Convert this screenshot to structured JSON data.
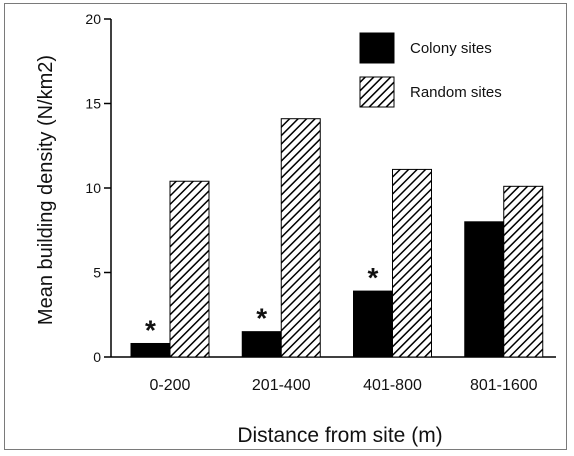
{
  "chart_data": {
    "type": "bar",
    "categories": [
      "0-200",
      "201-400",
      "401-800",
      "801-1600"
    ],
    "series": [
      {
        "name": "Colony sites",
        "values": [
          0.8,
          1.5,
          3.9,
          8.0
        ],
        "color": "#000000",
        "pattern": "solid"
      },
      {
        "name": "Random sites",
        "values": [
          10.4,
          14.1,
          11.1,
          10.1
        ],
        "color": "#000000",
        "pattern": "diagonal-hatch"
      }
    ],
    "significance_marks": [
      "*",
      "*",
      "*",
      ""
    ],
    "xlabel": "Distance from site (m)",
    "ylabel": "Mean building density (N/km2)",
    "ylim": [
      0,
      20
    ],
    "yticks": [
      "0",
      "5",
      "10",
      "15",
      "20"
    ],
    "grid": false,
    "legend_position": "top-right"
  }
}
